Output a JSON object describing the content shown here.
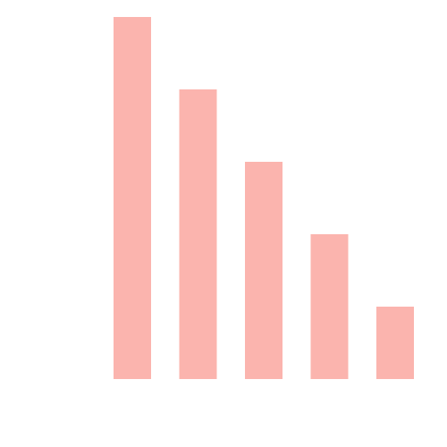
{
  "chart_data": {
    "type": "bar",
    "values": [
      5,
      4,
      3,
      2,
      1
    ],
    "color": "#fbb4ae"
  }
}
